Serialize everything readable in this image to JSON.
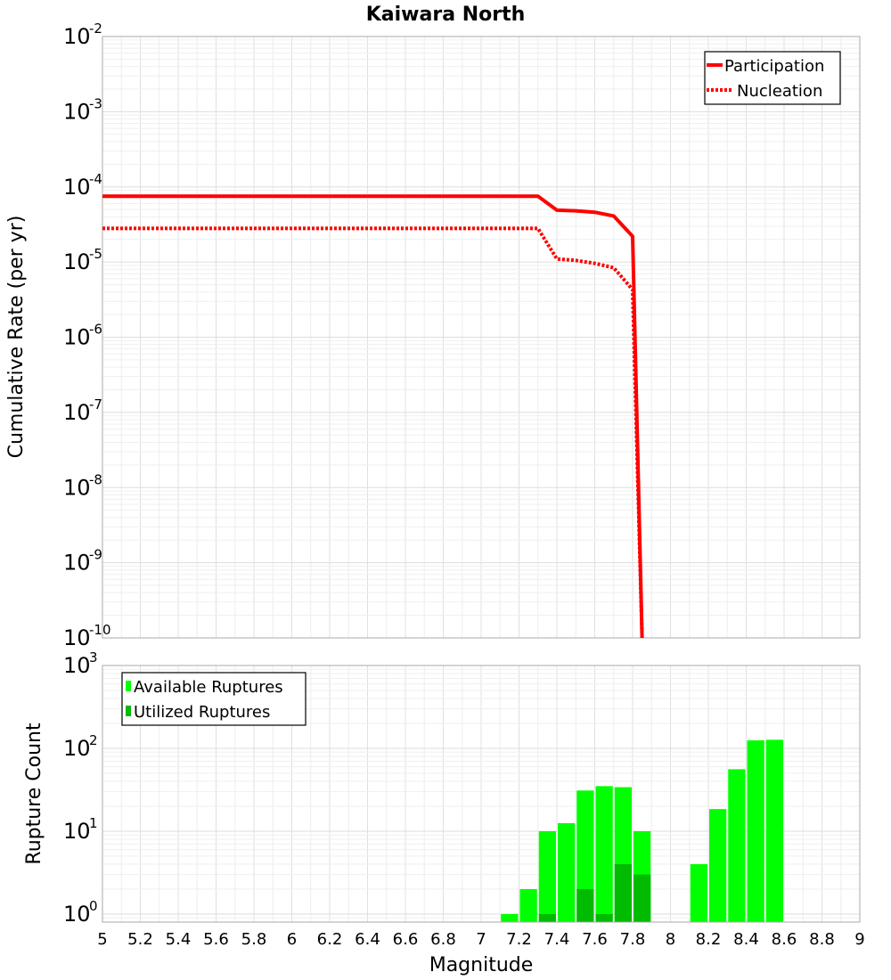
{
  "chart_data": [
    {
      "type": "line",
      "title": "Kaiwara North",
      "xlabel": "Magnitude",
      "ylabel": "Cumulative Rate (per yr)",
      "xlim": [
        5,
        9
      ],
      "ylim": [
        1e-10,
        0.01
      ],
      "yscale": "log",
      "grid": true,
      "legend_position": "top-right",
      "y_tick_exponents": [
        "-2",
        "-3",
        "-4",
        "-5",
        "-6",
        "-7",
        "-8",
        "-9",
        "-10"
      ],
      "series": [
        {
          "name": "Participation",
          "style": "solid",
          "color": "#ff0000",
          "x": [
            5.0,
            5.1,
            5.2,
            5.3,
            5.4,
            5.5,
            5.6,
            5.7,
            5.8,
            5.9,
            6.0,
            6.1,
            6.2,
            6.3,
            6.4,
            6.5,
            6.6,
            6.7,
            6.8,
            6.9,
            7.0,
            7.1,
            7.2,
            7.3,
            7.4,
            7.5,
            7.6,
            7.7,
            7.8,
            7.85
          ],
          "y": [
            7.5e-05,
            7.5e-05,
            7.5e-05,
            7.5e-05,
            7.5e-05,
            7.5e-05,
            7.5e-05,
            7.5e-05,
            7.5e-05,
            7.5e-05,
            7.5e-05,
            7.5e-05,
            7.5e-05,
            7.5e-05,
            7.5e-05,
            7.5e-05,
            7.5e-05,
            7.5e-05,
            7.5e-05,
            7.5e-05,
            7.5e-05,
            7.5e-05,
            7.5e-05,
            7.5e-05,
            4.9e-05,
            4.8e-05,
            4.6e-05,
            4.1e-05,
            2.2e-05,
            1e-10
          ]
        },
        {
          "name": "Nucleation",
          "style": "dotted",
          "color": "#ff0000",
          "x": [
            5.0,
            5.1,
            5.2,
            5.3,
            5.4,
            5.5,
            5.6,
            5.7,
            5.8,
            5.9,
            6.0,
            6.1,
            6.2,
            6.3,
            6.4,
            6.5,
            6.6,
            6.7,
            6.8,
            6.9,
            7.0,
            7.1,
            7.2,
            7.3,
            7.4,
            7.5,
            7.6,
            7.7,
            7.8,
            7.85
          ],
          "y": [
            2.8e-05,
            2.8e-05,
            2.8e-05,
            2.8e-05,
            2.8e-05,
            2.8e-05,
            2.8e-05,
            2.8e-05,
            2.8e-05,
            2.8e-05,
            2.8e-05,
            2.8e-05,
            2.8e-05,
            2.8e-05,
            2.8e-05,
            2.8e-05,
            2.8e-05,
            2.8e-05,
            2.8e-05,
            2.8e-05,
            2.8e-05,
            2.8e-05,
            2.8e-05,
            2.8e-05,
            1.1e-05,
            1.05e-05,
            9.6e-06,
            8.4e-06,
            4.3e-06,
            1e-10
          ]
        }
      ]
    },
    {
      "type": "bar",
      "xlabel": "Magnitude",
      "ylabel": "Rupture Count",
      "xlim": [
        5,
        9
      ],
      "ylim": [
        0.8,
        1000
      ],
      "yscale": "log",
      "grid": true,
      "legend_position": "top-left",
      "y_tick_exponents": [
        "3",
        "2",
        "1",
        "0"
      ],
      "x_tick_labels": [
        "5",
        "5.2",
        "5.4",
        "5.6",
        "5.8",
        "6",
        "6.2",
        "6.4",
        "6.6",
        "6.8",
        "7",
        "7.2",
        "7.4",
        "7.6",
        "7.8",
        "8",
        "8.2",
        "8.4",
        "8.6",
        "8.8",
        "9"
      ],
      "bin_width": 0.1,
      "series": [
        {
          "name": "Available Ruptures",
          "color": "#00ff00",
          "x": [
            7.15,
            7.25,
            7.35,
            7.45,
            7.55,
            7.65,
            7.75,
            7.85,
            8.15,
            8.25,
            8.35,
            8.45,
            8.55
          ],
          "values": [
            1,
            2,
            10,
            12.5,
            31,
            35,
            34,
            10,
            4,
            18.5,
            56,
            125,
            127
          ]
        },
        {
          "name": "Utilized Ruptures",
          "color": "#00bb00",
          "x": [
            7.35,
            7.55,
            7.65,
            7.75,
            7.85
          ],
          "values": [
            1,
            2,
            1,
            4,
            3
          ]
        }
      ]
    }
  ]
}
